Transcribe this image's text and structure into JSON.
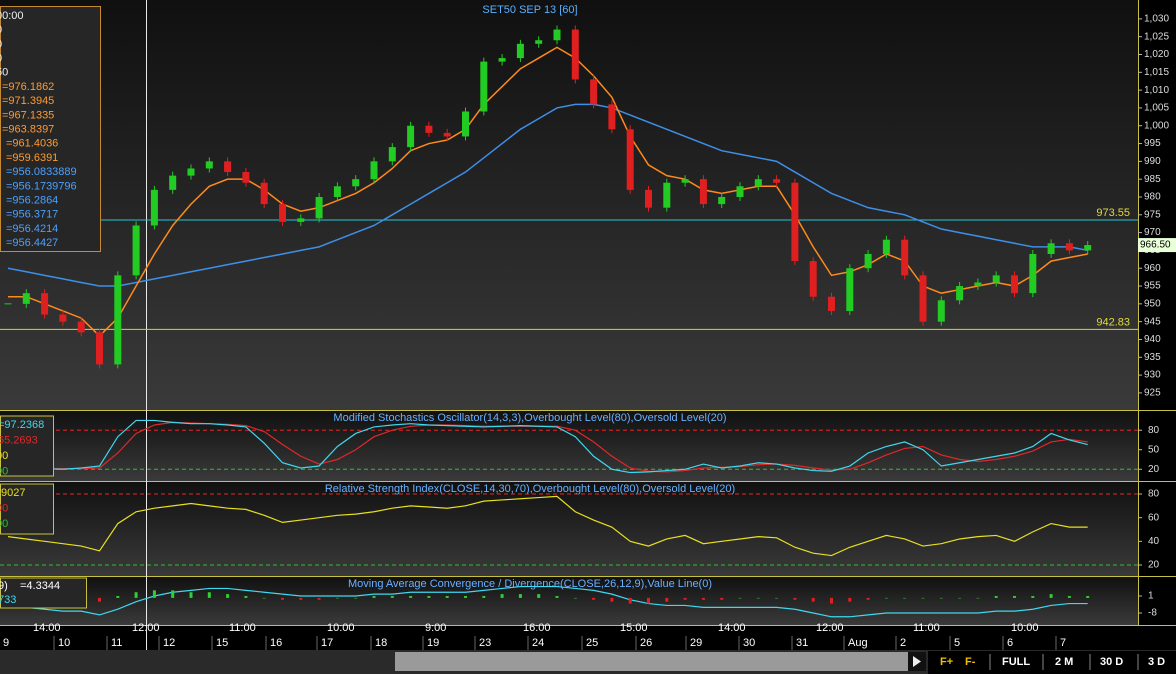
{
  "title": "SET50 SEP 13   [60]",
  "price_panel": {
    "legend_header": [
      "00:00",
      "0",
      "0",
      "0",
      "50"
    ],
    "legend_fast": [
      "=976.1862",
      "=971.3945",
      "=967.1335",
      "=963.8397",
      "=961.4036",
      "=959.6391"
    ],
    "legend_slow": [
      "=956.0833889",
      "=956.1739796",
      "=956.2864",
      "=956.3717",
      "=956.4214",
      "=956.4427"
    ],
    "ylim": [
      920.2,
      1035.3
    ],
    "yticks": [
      {
        "value": 1030,
        "label": "1,030"
      },
      {
        "value": 1025,
        "label": "1,025"
      },
      {
        "value": 1020,
        "label": "1,020"
      },
      {
        "value": 1015,
        "label": "1,015"
      },
      {
        "value": 1010,
        "label": "1,010"
      },
      {
        "value": 1005,
        "label": "1,005"
      },
      {
        "value": 1000,
        "label": "1,000"
      },
      995,
      990,
      985,
      980,
      975,
      970,
      965,
      960,
      955,
      950,
      945,
      940,
      935,
      930,
      925
    ],
    "close": [
      950,
      953,
      947,
      945,
      942,
      933,
      958,
      972,
      982,
      986,
      988,
      990,
      987,
      984,
      978,
      973,
      974,
      980,
      983,
      985,
      990,
      994,
      1000,
      998,
      997,
      1004,
      1018,
      1019,
      1023,
      1024,
      1027,
      1013,
      1006,
      999,
      982,
      977,
      984,
      985,
      978,
      980,
      983,
      985,
      984,
      962,
      952,
      948,
      960,
      964,
      968,
      958,
      945,
      951,
      955,
      956,
      958,
      953,
      964,
      967,
      965,
      966.5
    ],
    "fast_average": {
      "color": "#ff8a1c",
      "values": [
        952,
        952,
        950,
        948,
        946,
        941,
        946,
        955,
        964,
        972,
        978,
        983,
        985,
        985,
        982,
        978,
        976,
        977,
        979,
        981,
        984,
        988,
        993,
        995,
        996,
        999,
        1006,
        1011,
        1016,
        1019,
        1022,
        1019,
        1014,
        1008,
        997,
        989,
        986,
        985,
        982,
        981,
        982,
        983,
        983,
        975,
        966,
        958,
        959,
        961,
        964,
        962,
        955,
        953,
        954,
        955,
        956,
        955,
        958,
        962,
        963,
        964
      ]
    },
    "slow_average": {
      "color": "#3d8fe8",
      "values": [
        960,
        959,
        958,
        957,
        956,
        955,
        955,
        956,
        957,
        958,
        959,
        960,
        961,
        962,
        963,
        964,
        965,
        966,
        968,
        970,
        972,
        975,
        978,
        981,
        984,
        987,
        991,
        995,
        999,
        1002,
        1005,
        1006,
        1006,
        1005,
        1003,
        1001,
        999,
        997,
        995,
        993,
        992,
        991,
        990,
        987,
        984,
        981,
        979,
        977,
        976,
        975,
        973,
        971,
        970,
        969,
        968,
        967,
        966,
        966,
        966,
        965
      ]
    },
    "resistance": {
      "value": 973.55,
      "color": "#27c4d4"
    },
    "support": {
      "value": 942.83,
      "color": "#d6d62e"
    },
    "last": {
      "value": 966.5,
      "label": "966.50"
    }
  },
  "stochastic_panel": {
    "title": "Modified Stochastics Oscillator(14,3,3),Overbought Level(80),Oversold Level(20)",
    "legend": [
      "=97.2368",
      "65.2693",
      "00",
      "00"
    ],
    "ylim": [
      2,
      111
    ],
    "yticks": [
      80,
      50,
      20
    ],
    "k": {
      "color": "#3fd8ee",
      "values": [
        20,
        22,
        21,
        20,
        22,
        25,
        70,
        95,
        95,
        92,
        90,
        90,
        88,
        85,
        60,
        30,
        22,
        25,
        55,
        75,
        85,
        88,
        90,
        88,
        87,
        86,
        85,
        86,
        87,
        86,
        85,
        70,
        40,
        20,
        15,
        16,
        18,
        20,
        28,
        22,
        25,
        30,
        28,
        22,
        18,
        17,
        25,
        45,
        55,
        62,
        50,
        25,
        30,
        35,
        40,
        45,
        55,
        75,
        65,
        58
      ]
    },
    "d": {
      "color": "#e02828",
      "values": [
        22,
        21,
        21,
        21,
        21,
        22,
        45,
        75,
        88,
        92,
        91,
        90,
        89,
        87,
        78,
        58,
        40,
        28,
        35,
        50,
        70,
        80,
        86,
        88,
        88,
        87,
        86,
        86,
        86,
        86,
        86,
        80,
        62,
        40,
        22,
        17,
        16,
        18,
        22,
        23,
        24,
        27,
        28,
        26,
        22,
        19,
        20,
        30,
        42,
        52,
        55,
        42,
        35,
        32,
        35,
        40,
        48,
        62,
        66,
        62
      ]
    }
  },
  "rsi_panel": {
    "title": "Relative Strength Index(CLOSE,14,30,70),Overbought Level(80),Oversold Level(20)",
    "legend": [
      ".9027",
      "00",
      "00"
    ],
    "ylim": [
      10.7,
      91
    ],
    "yticks": [
      80,
      60,
      40,
      20
    ],
    "rsi": {
      "color": "#e8e020",
      "values": [
        44,
        42,
        40,
        38,
        36,
        32,
        55,
        65,
        68,
        70,
        72,
        70,
        68,
        67,
        62,
        56,
        58,
        60,
        62,
        63,
        65,
        68,
        70,
        69,
        68,
        70,
        74,
        75,
        76,
        77,
        78,
        65,
        58,
        52,
        40,
        36,
        42,
        45,
        38,
        40,
        42,
        44,
        43,
        35,
        30,
        28,
        35,
        40,
        45,
        42,
        36,
        38,
        42,
        44,
        45,
        40,
        48,
        55,
        52,
        52
      ]
    }
  },
  "macd_panel": {
    "title": "Moving Average Convergence / Divergence(CLOSE,26,12,9),Value Line(0)",
    "legend": [
      "9)",
      "=4.3344",
      "733"
    ],
    "ylim": [
      -14.35,
      11.6
    ],
    "yticks": [
      1,
      -8
    ],
    "macd": {
      "color": "#3fd8ee",
      "values": [
        -5,
        -5,
        -6,
        -7,
        -7,
        -9,
        -6,
        -2,
        1,
        3,
        4,
        5,
        5,
        4,
        3,
        2,
        1,
        1,
        1,
        1,
        2,
        2,
        3,
        3,
        3,
        3,
        4,
        5,
        6,
        6,
        6,
        5,
        4,
        2,
        -1,
        -3,
        -4,
        -4,
        -5,
        -5,
        -5,
        -5,
        -5,
        -6,
        -8,
        -10,
        -10,
        -9,
        -8,
        -8,
        -8,
        -8,
        -8,
        -8,
        -7,
        -7,
        -6,
        -4,
        -3,
        -3
      ]
    },
    "histogram": [
      0,
      0,
      -1,
      -1,
      -1,
      -2,
      1,
      3,
      4,
      4,
      3,
      3,
      2,
      1,
      0,
      -1,
      -1,
      -1,
      0,
      0,
      1,
      1,
      1,
      1,
      1,
      1,
      1,
      2,
      2,
      2,
      1,
      0,
      -1,
      -2,
      -3,
      -3,
      -2,
      -1,
      -1,
      -1,
      0,
      0,
      0,
      -1,
      -2,
      -3,
      -2,
      -1,
      0,
      0,
      0,
      0,
      0,
      0,
      1,
      1,
      1,
      2,
      1,
      1
    ]
  },
  "time_axis": {
    "hours": [
      "14:00",
      "12:00",
      "11:00",
      "10:00",
      "9:00",
      "16:00",
      "15:00",
      "14:00",
      "12:00",
      "11:00",
      "10:00"
    ],
    "days": [
      "9",
      "10",
      "11",
      "12",
      "15",
      "16",
      "17",
      "18",
      "19",
      "23",
      "24",
      "25",
      "26",
      "29",
      "30",
      "31",
      "Aug",
      "2",
      "5",
      "6",
      "7"
    ]
  },
  "toolbar": [
    "F+",
    "F-",
    "FULL",
    "2 M",
    "30 D",
    "3 D"
  ]
}
